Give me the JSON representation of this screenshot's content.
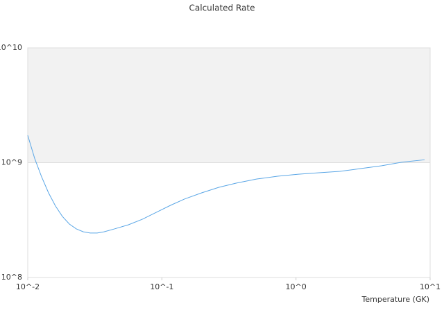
{
  "chart_data": {
    "type": "line",
    "title": "Calculated Rate",
    "x_label": "Temperature (GK)",
    "log_x": true,
    "log_y": true,
    "grid": true,
    "band_color": "#f2f2f2",
    "xlim": [
      0.01,
      10
    ],
    "ylim": [
      100000000,
      10000000000
    ],
    "xticks": [
      {
        "value": 0.01,
        "label": "10^-2"
      },
      {
        "value": 0.1,
        "label": "10^-1"
      },
      {
        "value": 1,
        "label": "10^0"
      },
      {
        "value": 10,
        "label": "10^1"
      }
    ],
    "yticks": [
      {
        "value": 100000000,
        "label": "10^8"
      },
      {
        "value": 1000000000,
        "label": "10^9"
      },
      {
        "value": 10000000000,
        "label": "10^10"
      }
    ],
    "x": [
      0.01,
      0.01126,
      0.01269,
      0.01429,
      0.0161,
      0.01814,
      0.02044,
      0.02302,
      0.02594,
      0.02922,
      0.03292,
      0.03709,
      0.04435,
      0.05639,
      0.07168,
      0.09114,
      0.1159,
      0.1473,
      0.1979,
      0.266,
      0.3575,
      0.5105,
      0.7288,
      1.041,
      1.486,
      2.122,
      3.03,
      4.327,
      6.178,
      9.093
    ],
    "series": [
      {
        "color": "#5aa6e6",
        "values": [
          1730000000,
          1090000000,
          752000000,
          546000000,
          419000000,
          340000000,
          292000000,
          265000000,
          250000000,
          244000000,
          244000000,
          250000000,
          265000000,
          288000000,
          322000000,
          370000000,
          425000000,
          482000000,
          546000000,
          610000000,
          663000000,
          721000000,
          762000000,
          794000000,
          817000000,
          840000000,
          888000000,
          939000000,
          1010000000,
          1060000000
        ]
      }
    ]
  }
}
